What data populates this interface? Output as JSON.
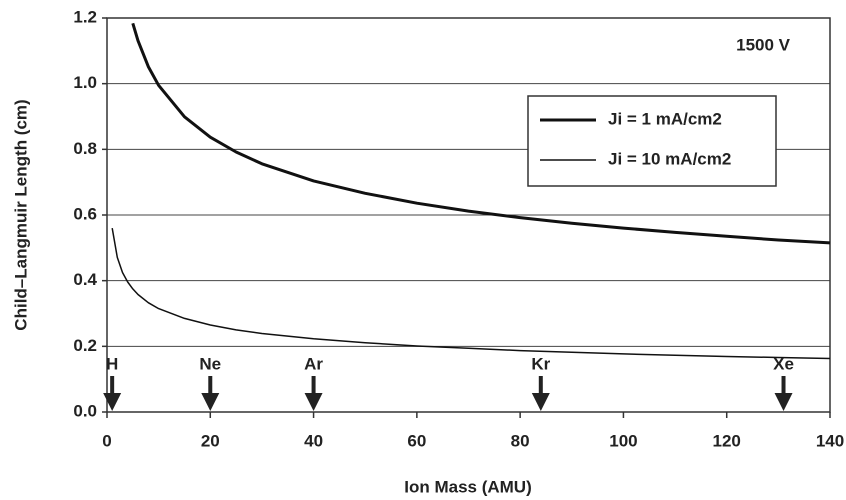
{
  "chart_data": {
    "type": "line",
    "xlabel": "Ion Mass (AMU)",
    "ylabel": "Child–Langmuir Length (cm)",
    "annotation": "1500 V",
    "series": [
      {
        "name": "Ji = 1 mA/cm2",
        "color": "#111111",
        "width": 3,
        "x": [
          5,
          6,
          8,
          10,
          15,
          20,
          25,
          30,
          40,
          50,
          60,
          70,
          80,
          90,
          100,
          110,
          120,
          130,
          140
        ],
        "values": [
          1.184,
          1.131,
          1.052,
          0.995,
          0.899,
          0.837,
          0.792,
          0.756,
          0.704,
          0.666,
          0.636,
          0.612,
          0.592,
          0.575,
          0.56,
          0.547,
          0.535,
          0.524,
          0.515
        ]
      },
      {
        "name": "Ji = 10 mA/cm2",
        "color": "#111111",
        "width": 1.5,
        "x": [
          1,
          2,
          3,
          4,
          5,
          6,
          8,
          10,
          15,
          20,
          25,
          30,
          40,
          50,
          60,
          70,
          80,
          90,
          100,
          110,
          120,
          130,
          140
        ],
        "values": [
          0.56,
          0.471,
          0.425,
          0.396,
          0.375,
          0.358,
          0.333,
          0.315,
          0.285,
          0.265,
          0.25,
          0.239,
          0.223,
          0.211,
          0.201,
          0.194,
          0.187,
          0.182,
          0.177,
          0.173,
          0.169,
          0.166,
          0.163
        ]
      }
    ],
    "markers": [
      {
        "label": "H",
        "x": 1
      },
      {
        "label": "Ne",
        "x": 20
      },
      {
        "label": "Ar",
        "x": 40
      },
      {
        "label": "Kr",
        "x": 84
      },
      {
        "label": "Xe",
        "x": 131
      }
    ],
    "xlim": [
      0,
      140
    ],
    "xticks": [
      0,
      20,
      40,
      60,
      80,
      100,
      120,
      140
    ],
    "ylim": [
      0,
      1.2
    ],
    "yticks": [
      {
        "value": 0,
        "label": "0.0"
      },
      0.2,
      0.4,
      0.6,
      0.8,
      {
        "value": 1,
        "label": "1.0"
      },
      1.2
    ],
    "grid": true,
    "legend": "upper right"
  }
}
